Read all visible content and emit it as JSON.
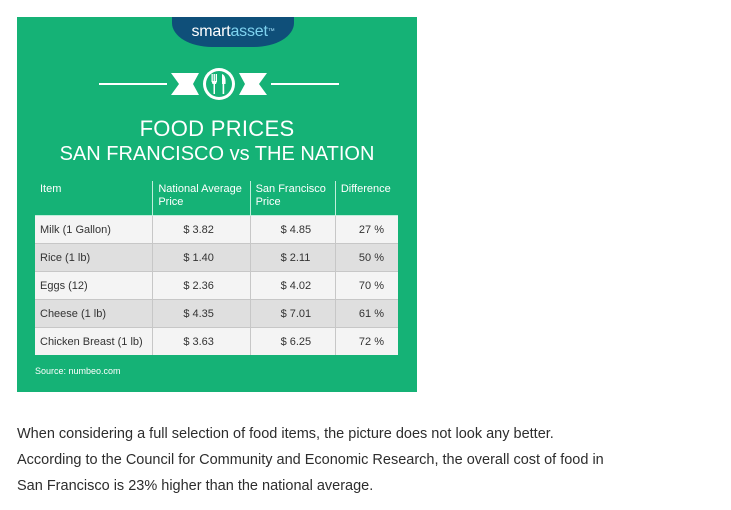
{
  "infographic": {
    "logo": {
      "part1": "smart",
      "part2": "asset",
      "tm": "™"
    },
    "emblem_icon": "fork-and-knife-icon",
    "title_line1": "FOOD PRICES",
    "title_line2": "SAN FRANCISCO vs THE NATION",
    "table": {
      "headers": [
        "Item",
        "National Average Price",
        "San Francisco Price",
        "Difference"
      ],
      "rows": [
        {
          "item": "Milk (1 Gallon)",
          "national": "$ 3.82",
          "sf": "$ 4.85",
          "diff": "27 %"
        },
        {
          "item": "Rice (1 lb)",
          "national": "$ 1.40",
          "sf": "$  2.11",
          "diff": "50 %"
        },
        {
          "item": "Eggs (12)",
          "national": "$ 2.36",
          "sf": "$ 4.02",
          "diff": "70 %"
        },
        {
          "item": "Cheese (1 lb)",
          "national": "$ 4.35",
          "sf": "$  7.01",
          "diff": "61 %"
        },
        {
          "item": "Chicken Breast (1 lb)",
          "national": "$ 3.63",
          "sf": "$ 6.25",
          "diff": "72 %"
        }
      ]
    },
    "source": "Source: numbeo.com",
    "colors": {
      "background_green": "#15b276",
      "logo_navy": "#0f4f79",
      "logo_light_blue": "#7fd3f0"
    }
  },
  "article": {
    "line1": "When considering a full selection of food items, the picture does not look any better.",
    "line2": "According to the Council for Community and Economic Research, the overall cost of food in",
    "line3": "San Francisco is 23% higher than the national average."
  }
}
